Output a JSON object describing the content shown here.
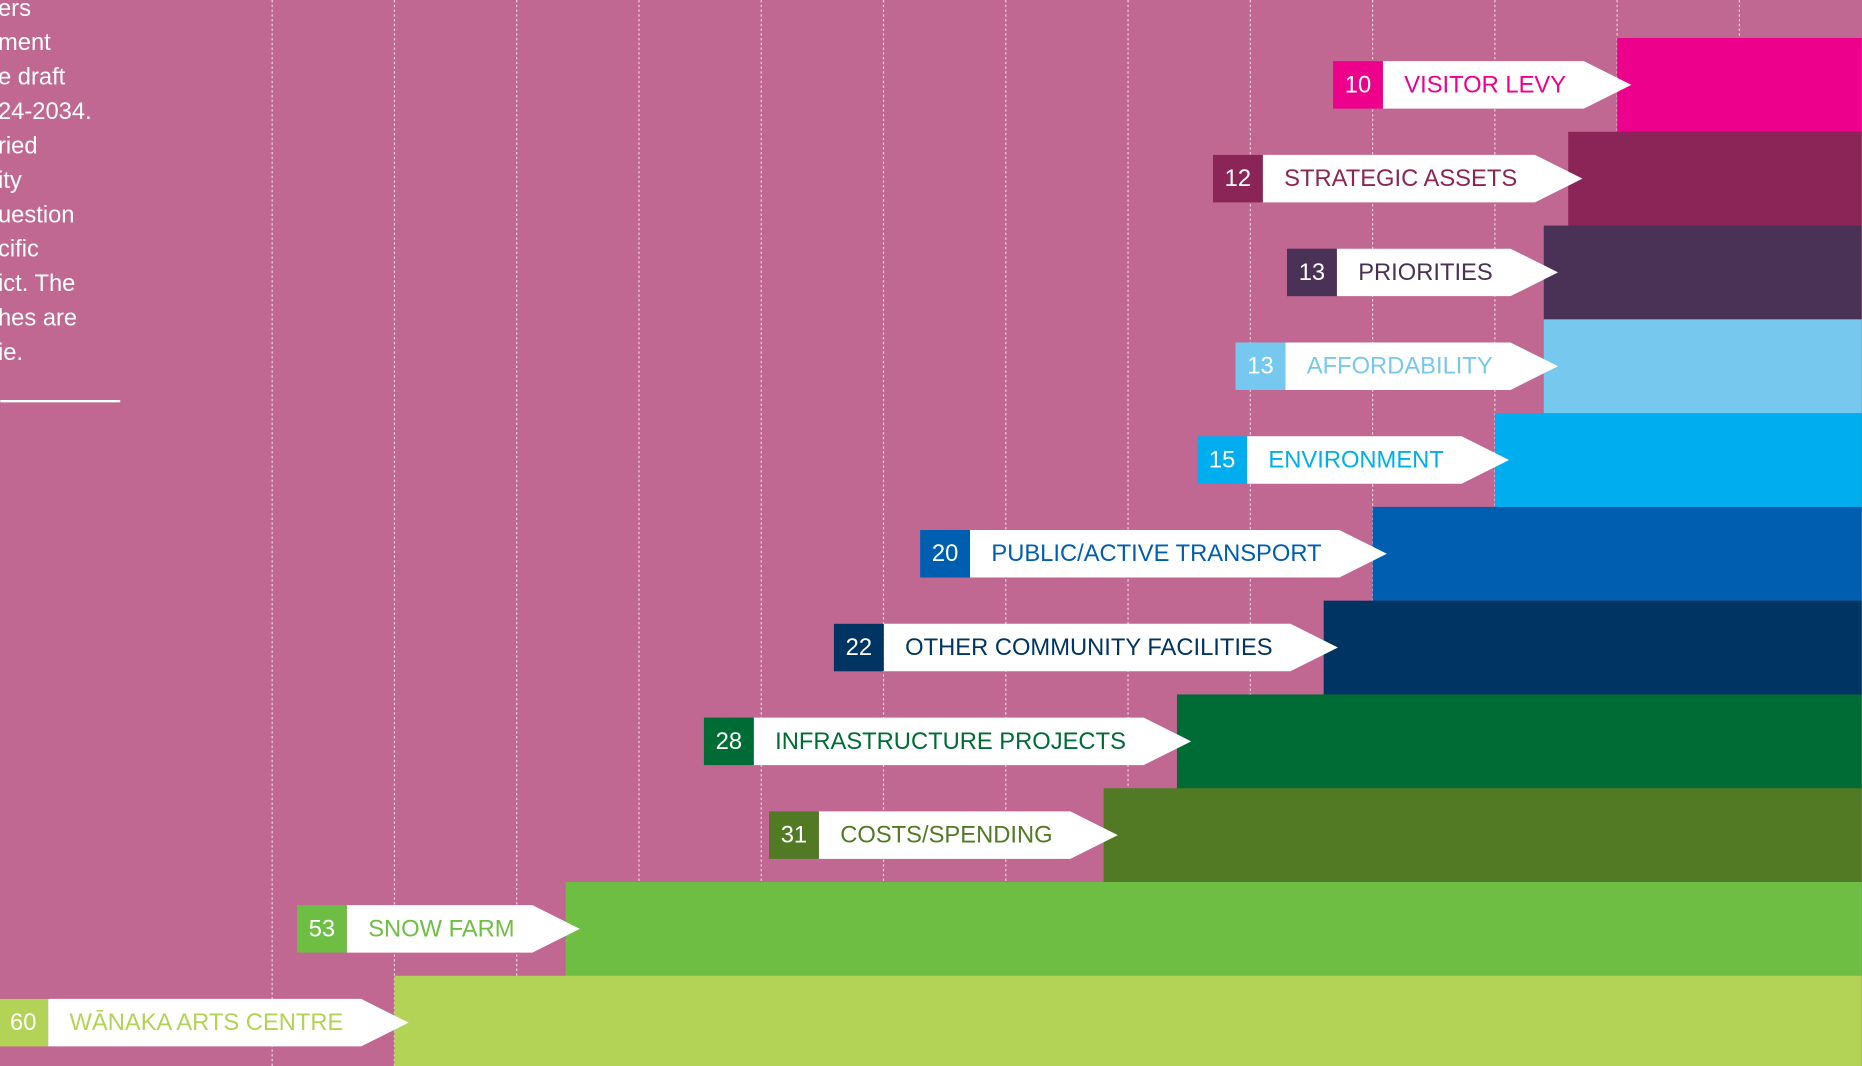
{
  "side_text": [
    "ers",
    "ment",
    "e draft",
    "24-2034.",
    "ried",
    "ity",
    "uestion",
    "cific",
    "ict. The",
    "hes are",
    "ie."
  ],
  "chart_data": {
    "type": "bar",
    "orientation": "horizontal",
    "categories": [
      "VISITOR LEVY",
      "STRATEGIC ASSETS",
      "PRIORITIES",
      "AFFORDABILITY",
      "ENVIRONMENT",
      "PUBLIC/ACTIVE TRANSPORT",
      "OTHER COMMUNITY FACILITIES",
      "INFRASTRUCTURE PROJECTS",
      "COSTS/SPENDING",
      "SNOW FARM",
      "WĀNAKA ARTS CENTRE"
    ],
    "values": [
      10,
      12,
      13,
      13,
      15,
      20,
      22,
      28,
      31,
      53,
      60
    ],
    "colors": [
      "#ec008c",
      "#8b2557",
      "#4a3256",
      "#77c8ee",
      "#00aeef",
      "#005eb0",
      "#003462",
      "#006c35",
      "#527a24",
      "#6fbe44",
      "#b2d355"
    ],
    "xlim": [
      0,
      65
    ],
    "xticks": [
      5,
      10,
      15,
      20,
      25,
      30,
      35,
      40,
      45,
      50,
      55,
      60,
      65
    ],
    "grid": true
  }
}
